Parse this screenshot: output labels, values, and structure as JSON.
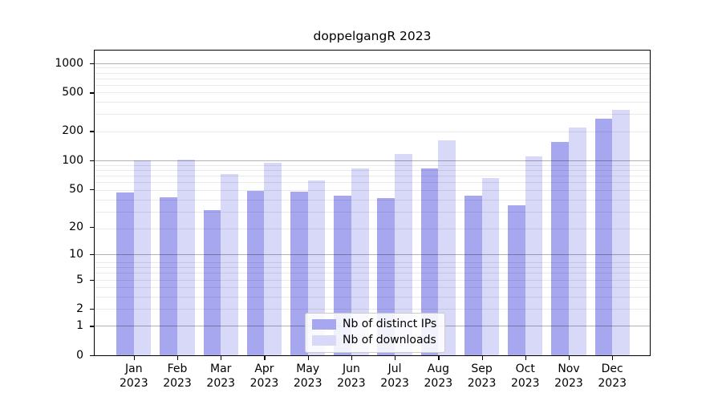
{
  "chart_data": {
    "type": "bar",
    "title": "doppelgangR 2023",
    "scale": "log10(1+y)",
    "ylim": [
      0,
      1352
    ],
    "yticks": [
      0,
      1,
      2,
      5,
      10,
      20,
      50,
      100,
      200,
      500,
      1000
    ],
    "major_gridlines_at": [
      1,
      10,
      100,
      1000
    ],
    "minor_grid_mantissas": [
      2,
      3,
      4,
      5,
      6,
      7,
      8,
      9
    ],
    "grid": true,
    "categories": [
      "Jan",
      "Feb",
      "Mar",
      "Apr",
      "May",
      "Jun",
      "Jul",
      "Aug",
      "Sep",
      "Oct",
      "Nov",
      "Dec"
    ],
    "year": "2023",
    "series": [
      {
        "name": "Nb of distinct IPs",
        "color": "#a7a7f0",
        "values": [
          46,
          41,
          30,
          48,
          47,
          43,
          40,
          82,
          43,
          34,
          154,
          270
        ]
      },
      {
        "name": "Nb of downloads",
        "color": "#d8d8f8",
        "values": [
          100,
          101,
          72,
          94,
          62,
          82,
          115,
          161,
          65,
          110,
          219,
          330
        ]
      }
    ],
    "legend_position": "lower center"
  }
}
